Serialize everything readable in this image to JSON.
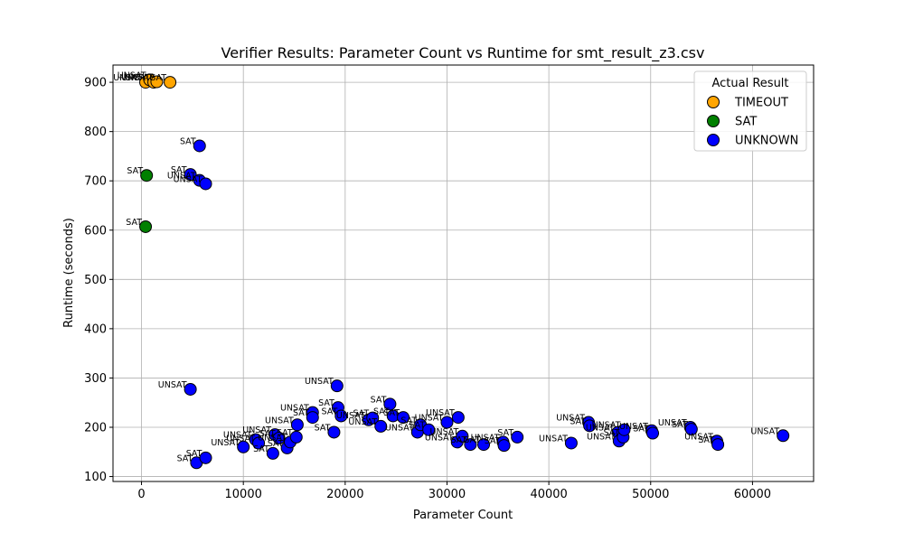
{
  "chart_data": {
    "type": "scatter",
    "title": "Verifier Results: Parameter Count vs Runtime for smt_result_z3.csv",
    "xlabel": "Parameter Count",
    "ylabel": "Runtime (seconds)",
    "xlim": [
      -2800,
      66000
    ],
    "ylim": [
      90,
      935
    ],
    "xticks": [
      0,
      10000,
      20000,
      30000,
      40000,
      50000,
      60000
    ],
    "yticks": [
      100,
      200,
      300,
      400,
      500,
      600,
      700,
      800,
      900
    ],
    "grid": true,
    "legend": {
      "title": "Actual Result",
      "placement": "top-right",
      "entries": [
        "TIMEOUT",
        "SAT",
        "UNKNOWN"
      ]
    },
    "colors": {
      "TIMEOUT": "#FFA500",
      "SAT": "#008000",
      "UNKNOWN": "#0000FF"
    },
    "series": [
      {
        "name": "TIMEOUT",
        "points": [
          {
            "x": 400,
            "y": 900,
            "label": "UNSAT"
          },
          {
            "x": 800,
            "y": 905,
            "label": "UNSAT"
          },
          {
            "x": 1200,
            "y": 900,
            "label": "UNSAT"
          },
          {
            "x": 1500,
            "y": 901,
            "label": "UNSAT"
          },
          {
            "x": 2800,
            "y": 900,
            "label": "SAT"
          }
        ]
      },
      {
        "name": "SAT",
        "points": [
          {
            "x": 500,
            "y": 711,
            "label": "SAT"
          },
          {
            "x": 400,
            "y": 607,
            "label": "SAT"
          }
        ]
      },
      {
        "name": "UNKNOWN",
        "points": [
          {
            "x": 5700,
            "y": 771,
            "label": "SAT"
          },
          {
            "x": 4800,
            "y": 713,
            "label": "SAT"
          },
          {
            "x": 5700,
            "y": 701,
            "label": "UNSAT"
          },
          {
            "x": 6300,
            "y": 694,
            "label": "UNSAT"
          },
          {
            "x": 4800,
            "y": 277,
            "label": "UNSAT"
          },
          {
            "x": 19200,
            "y": 284,
            "label": "UNSAT"
          },
          {
            "x": 5400,
            "y": 128,
            "label": "SAT"
          },
          {
            "x": 6300,
            "y": 138,
            "label": "SAT"
          },
          {
            "x": 10000,
            "y": 160,
            "label": "UNSAT"
          },
          {
            "x": 11200,
            "y": 175,
            "label": "UNSAT"
          },
          {
            "x": 11500,
            "y": 168,
            "label": "UNSAT"
          },
          {
            "x": 12900,
            "y": 147,
            "label": "SAT"
          },
          {
            "x": 13100,
            "y": 185,
            "label": "UNSAT"
          },
          {
            "x": 13500,
            "y": 178,
            "label": "SAT"
          },
          {
            "x": 14300,
            "y": 158,
            "label": "SAT"
          },
          {
            "x": 14600,
            "y": 170,
            "label": "UNSAT"
          },
          {
            "x": 15200,
            "y": 180,
            "label": "SAT"
          },
          {
            "x": 15300,
            "y": 205,
            "label": "UNSAT"
          },
          {
            "x": 16800,
            "y": 230,
            "label": "UNSAT"
          },
          {
            "x": 16800,
            "y": 220,
            "label": "SAT"
          },
          {
            "x": 18900,
            "y": 190,
            "label": "SAT"
          },
          {
            "x": 19300,
            "y": 240,
            "label": "SAT"
          },
          {
            "x": 19600,
            "y": 223,
            "label": "SAT"
          },
          {
            "x": 22300,
            "y": 215,
            "label": "UNSAT"
          },
          {
            "x": 22700,
            "y": 219,
            "label": "SAT"
          },
          {
            "x": 23500,
            "y": 202,
            "label": "UNSAT"
          },
          {
            "x": 24400,
            "y": 247,
            "label": "SAT"
          },
          {
            "x": 24700,
            "y": 223,
            "label": "SAT"
          },
          {
            "x": 25700,
            "y": 220,
            "label": "SAT"
          },
          {
            "x": 27100,
            "y": 190,
            "label": "UNSAT"
          },
          {
            "x": 27400,
            "y": 205,
            "label": "SAT"
          },
          {
            "x": 28200,
            "y": 195,
            "label": "SAT"
          },
          {
            "x": 30000,
            "y": 210,
            "label": "UNSAT"
          },
          {
            "x": 31100,
            "y": 220,
            "label": "UNSAT"
          },
          {
            "x": 31000,
            "y": 170,
            "label": "UNSAT"
          },
          {
            "x": 31500,
            "y": 182,
            "label": "UNSAT"
          },
          {
            "x": 32300,
            "y": 165,
            "label": "SAT"
          },
          {
            "x": 33600,
            "y": 165,
            "label": "SAT"
          },
          {
            "x": 35500,
            "y": 170,
            "label": "UNSAT"
          },
          {
            "x": 35600,
            "y": 163,
            "label": "SAT"
          },
          {
            "x": 36900,
            "y": 180,
            "label": "SAT"
          },
          {
            "x": 42200,
            "y": 168,
            "label": "UNSAT"
          },
          {
            "x": 43900,
            "y": 210,
            "label": "UNSAT"
          },
          {
            "x": 44000,
            "y": 203,
            "label": "SAT"
          },
          {
            "x": 46800,
            "y": 190,
            "label": "UNSAT"
          },
          {
            "x": 46900,
            "y": 172,
            "label": "UNSAT"
          },
          {
            "x": 47300,
            "y": 180,
            "label": "SAT"
          },
          {
            "x": 47400,
            "y": 195,
            "label": "UNSAT"
          },
          {
            "x": 50100,
            "y": 193,
            "label": "UNSAT"
          },
          {
            "x": 50200,
            "y": 188,
            "label": "SAT"
          },
          {
            "x": 53900,
            "y": 200,
            "label": "UNSAT"
          },
          {
            "x": 54000,
            "y": 196,
            "label": "SAT"
          },
          {
            "x": 56500,
            "y": 172,
            "label": "UNSAT"
          },
          {
            "x": 56600,
            "y": 165,
            "label": "SAT"
          },
          {
            "x": 63000,
            "y": 183,
            "label": "UNSAT"
          }
        ]
      }
    ]
  }
}
